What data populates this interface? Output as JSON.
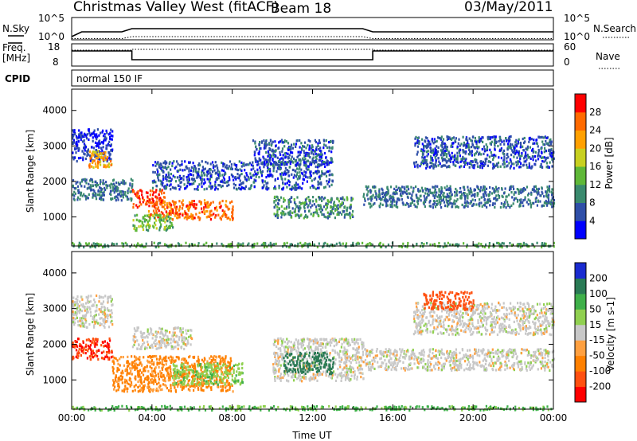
{
  "header": {
    "station": "Christmas Valley West (fitACF)",
    "beam": "Beam 18",
    "date": "03/May/2011"
  },
  "params": {
    "nsky_label": "N.Sky",
    "nsearch_label": "N.Search",
    "nsky_ticks": [
      "10^5",
      "10^0"
    ],
    "nsearch_ticks": [
      "10^5",
      "10^0"
    ],
    "freq_label": "Freq.",
    "freq_unit": "[MHz]",
    "freq_ticks": [
      "18",
      "8"
    ],
    "nave_label": "Nave",
    "nave_ticks": [
      "60",
      "0"
    ],
    "cpid_label": "CPID",
    "cpid_value": "normal 150 IF"
  },
  "colors": {
    "power": [
      "#0000ff",
      "#2f4fa8",
      "#3a8a6e",
      "#5fb838",
      "#c8d020",
      "#ffa000",
      "#ff6a00",
      "#ff0000"
    ],
    "velocity": [
      "#1a2bd0",
      "#2a7a55",
      "#3fb04a",
      "#90d050",
      "#c8c8c8",
      "#ffa040",
      "#ff8000",
      "#ff5010",
      "#ff0000"
    ]
  },
  "chart_data": [
    {
      "type": "heatmap",
      "title": "Power",
      "ylabel": "Slant Range [km]",
      "xlabel": "Time UT",
      "x_ticks": [
        "00:00",
        "04:00",
        "08:00",
        "12:00",
        "16:00",
        "20:00",
        "00:00"
      ],
      "x_range_hours": [
        0,
        24
      ],
      "y_ticks": [
        1000,
        2000,
        3000,
        4000
      ],
      "ylim_km": [
        180,
        4600
      ],
      "colorbar": {
        "label": "Power [dB]",
        "ticks": [
          "4",
          "8",
          "12",
          "16",
          "20",
          "24",
          "28"
        ],
        "range_db": [
          0,
          32
        ]
      },
      "echo_regions": [
        {
          "t": [
            0.0,
            2.0
          ],
          "range_km": [
            2600,
            3500
          ],
          "level_db": 4
        },
        {
          "t": [
            0.8,
            2.0
          ],
          "range_km": [
            2400,
            2900
          ],
          "level_db": 22
        },
        {
          "t": [
            0.0,
            3.0
          ],
          "range_km": [
            1500,
            2100
          ],
          "level_db": 8
        },
        {
          "t": [
            3.0,
            4.6
          ],
          "range_km": [
            1300,
            1800
          ],
          "level_db": 28
        },
        {
          "t": [
            3.8,
            8.0
          ],
          "range_km": [
            950,
            1500
          ],
          "level_db": 26
        },
        {
          "t": [
            3.0,
            5.0
          ],
          "range_km": [
            650,
            1100
          ],
          "level_db": 14
        },
        {
          "t": [
            4.0,
            13.0
          ],
          "range_km": [
            1800,
            2600
          ],
          "level_db": 6
        },
        {
          "t": [
            10.0,
            14.0
          ],
          "range_km": [
            1000,
            1600
          ],
          "level_db": 10
        },
        {
          "t": [
            9.0,
            13.0
          ],
          "range_km": [
            2500,
            3200
          ],
          "level_db": 6
        },
        {
          "t": [
            14.5,
            24.0
          ],
          "range_km": [
            1300,
            1900
          ],
          "level_db": 8
        },
        {
          "t": [
            17.0,
            24.0
          ],
          "range_km": [
            2400,
            3300
          ],
          "level_db": 6
        },
        {
          "t": [
            0.0,
            24.0
          ],
          "range_km": [
            180,
            300
          ],
          "level_db": 12
        }
      ]
    },
    {
      "type": "heatmap",
      "title": "Velocity",
      "ylabel": "Slant Range [km]",
      "xlabel": "Time UT",
      "x_ticks": [
        "00:00",
        "04:00",
        "08:00",
        "12:00",
        "16:00",
        "20:00",
        "00:00"
      ],
      "x_range_hours": [
        0,
        24
      ],
      "y_ticks": [
        1000,
        2000,
        3000,
        4000
      ],
      "ylim_km": [
        180,
        4600
      ],
      "colorbar": {
        "label": "Velocity [m s-1]",
        "ticks": [
          "200",
          "100",
          "50",
          "15",
          "-15",
          "-50",
          "-100",
          "-200"
        ],
        "range_ms": [
          -250,
          250
        ]
      },
      "echo_regions": [
        {
          "t": [
            0.0,
            2.0
          ],
          "range_km": [
            2500,
            3400
          ],
          "level_ms": 0
        },
        {
          "t": [
            0.0,
            2.0
          ],
          "range_km": [
            1600,
            2200
          ],
          "level_ms": -200
        },
        {
          "t": [
            2.0,
            8.0
          ],
          "range_km": [
            700,
            1700
          ],
          "level_ms": -60
        },
        {
          "t": [
            5.0,
            8.5
          ],
          "range_km": [
            900,
            1500
          ],
          "level_ms": 40
        },
        {
          "t": [
            3.0,
            6.0
          ],
          "range_km": [
            1900,
            2500
          ],
          "level_ms": 0
        },
        {
          "t": [
            10.0,
            14.5
          ],
          "range_km": [
            1000,
            2200
          ],
          "level_ms": 0
        },
        {
          "t": [
            10.5,
            13.0
          ],
          "range_km": [
            1200,
            1800
          ],
          "level_ms": 150
        },
        {
          "t": [
            14.5,
            24.0
          ],
          "range_km": [
            1300,
            1900
          ],
          "level_ms": 0
        },
        {
          "t": [
            17.0,
            24.0
          ],
          "range_km": [
            2300,
            3200
          ],
          "level_ms": 0
        },
        {
          "t": [
            17.5,
            20.0
          ],
          "range_km": [
            3000,
            3500
          ],
          "level_ms": -150
        },
        {
          "t": [
            0.0,
            24.0
          ],
          "range_km": [
            180,
            300
          ],
          "level_ms": 60
        }
      ]
    }
  ]
}
